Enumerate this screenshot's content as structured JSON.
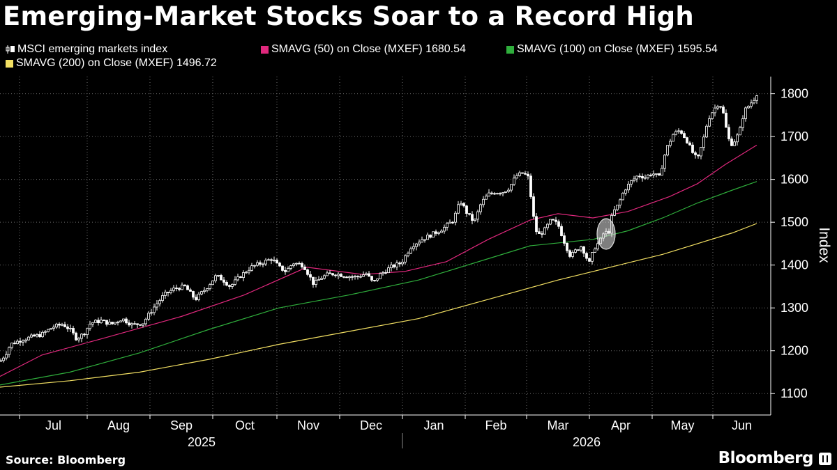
{
  "title": "Emerging-Market Stocks Soar to a Record High",
  "source": "Source: Bloomberg",
  "brand": "Bloomberg",
  "brand_icon": "bloomberg-terminal-icon",
  "colors": {
    "background": "#000000",
    "candles": "#ffffff",
    "sma50": "#e0287d",
    "sma100": "#2fae3c",
    "sma200": "#f3e063",
    "grid": "#6e6e6e"
  },
  "legend": [
    {
      "label": "MSCI emerging markets index",
      "color": "#ffffff",
      "icon": "candlestick-icon"
    },
    {
      "label": "SMAVG (50)  on Close (MXEF) 1680.54",
      "color": "#e0287d"
    },
    {
      "label": "SMAVG (100)  on Close (MXEF) 1595.54",
      "color": "#2fae3c"
    },
    {
      "label": "SMAVG (200)  on Close (MXEF) 1496.72",
      "color": "#f3e063"
    }
  ],
  "chart_data": {
    "type": "line",
    "subtype": "candlestick with moving averages",
    "ylabel": "Index",
    "ylim": [
      1050,
      1840
    ],
    "y_ticks": [
      1100,
      1200,
      1300,
      1400,
      1500,
      1600,
      1700,
      1800
    ],
    "x_months": [
      "Jul",
      "Aug",
      "Sep",
      "Oct",
      "Nov",
      "Dec",
      "Jan",
      "Feb",
      "Mar",
      "Apr",
      "May",
      "Jun"
    ],
    "x_years": [
      "2025",
      "2026"
    ],
    "grid": "dotted",
    "legend_position": "top",
    "annotation": "circle highlighting early-April rebound",
    "series": [
      {
        "name": "MSCI emerging markets index",
        "type": "candlestick",
        "x_points": [
          0,
          8,
          15,
          30,
          45,
          60,
          75,
          90,
          100,
          110,
          120,
          130,
          145,
          160,
          175,
          190,
          205,
          220,
          235,
          250,
          265,
          280,
          295,
          310,
          320,
          330,
          345,
          360,
          375,
          390,
          400,
          410,
          420,
          435,
          450,
          460,
          470,
          480,
          495,
          510,
          525,
          535,
          545,
          560,
          575,
          590,
          605,
          620,
          635,
          650,
          660,
          670,
          680,
          690,
          700,
          710,
          720,
          730,
          740,
          750,
          757,
          762,
          767,
          772,
          780,
          790,
          800,
          810,
          818,
          826,
          834,
          840,
          845,
          852,
          860,
          867,
          872,
          878,
          886,
          895,
          905,
          915,
          925,
          935,
          945,
          955,
          965,
          975,
          985,
          992,
          1000,
          1008,
          1015,
          1022,
          1029,
          1035,
          1041,
          1047,
          1053,
          1060,
          1067,
          1075,
          1082,
          1085
        ],
        "values": [
          1175,
          1192,
          1215,
          1225,
          1232,
          1238,
          1255,
          1262,
          1250,
          1228,
          1240,
          1265,
          1270,
          1262,
          1275,
          1260,
          1265,
          1300,
          1330,
          1345,
          1350,
          1320,
          1345,
          1375,
          1365,
          1350,
          1375,
          1395,
          1405,
          1415,
          1395,
          1385,
          1405,
          1400,
          1355,
          1370,
          1378,
          1380,
          1375,
          1372,
          1380,
          1358,
          1378,
          1395,
          1405,
          1445,
          1460,
          1472,
          1485,
          1505,
          1550,
          1520,
          1500,
          1545,
          1565,
          1570,
          1570,
          1580,
          1608,
          1615,
          1605,
          1550,
          1485,
          1470,
          1480,
          1505,
          1495,
          1450,
          1420,
          1435,
          1445,
          1420,
          1405,
          1440,
          1455,
          1480,
          1470,
          1520,
          1540,
          1575,
          1595,
          1610,
          1605,
          1615,
          1605,
          1670,
          1705,
          1715,
          1690,
          1665,
          1645,
          1690,
          1740,
          1760,
          1775,
          1770,
          1720,
          1680,
          1690,
          1710,
          1760,
          1775,
          1790,
          1800
        ]
      },
      {
        "name": "SMAVG (50)",
        "type": "line",
        "x_points": [
          0,
          60,
          150,
          260,
          350,
          440,
          520,
          580,
          640,
          700,
          760,
          800,
          850,
          900,
          960,
          1000,
          1040,
          1085
        ],
        "values": [
          1140,
          1190,
          1230,
          1280,
          1330,
          1395,
          1378,
          1385,
          1408,
          1460,
          1505,
          1520,
          1510,
          1525,
          1560,
          1590,
          1635,
          1680
        ]
      },
      {
        "name": "SMAVG (100)",
        "type": "line",
        "x_points": [
          0,
          100,
          200,
          300,
          400,
          500,
          600,
          700,
          760,
          850,
          900,
          950,
          1000,
          1050,
          1085
        ],
        "values": [
          1120,
          1150,
          1195,
          1250,
          1300,
          1330,
          1365,
          1415,
          1445,
          1460,
          1480,
          1510,
          1545,
          1575,
          1595
        ]
      },
      {
        "name": "SMAVG (200)",
        "type": "line",
        "x_points": [
          0,
          100,
          200,
          300,
          400,
          500,
          600,
          700,
          800,
          850,
          900,
          950,
          1000,
          1050,
          1085
        ],
        "values": [
          1115,
          1130,
          1150,
          1180,
          1215,
          1245,
          1275,
          1320,
          1365,
          1385,
          1405,
          1425,
          1450,
          1475,
          1497
        ]
      }
    ]
  }
}
